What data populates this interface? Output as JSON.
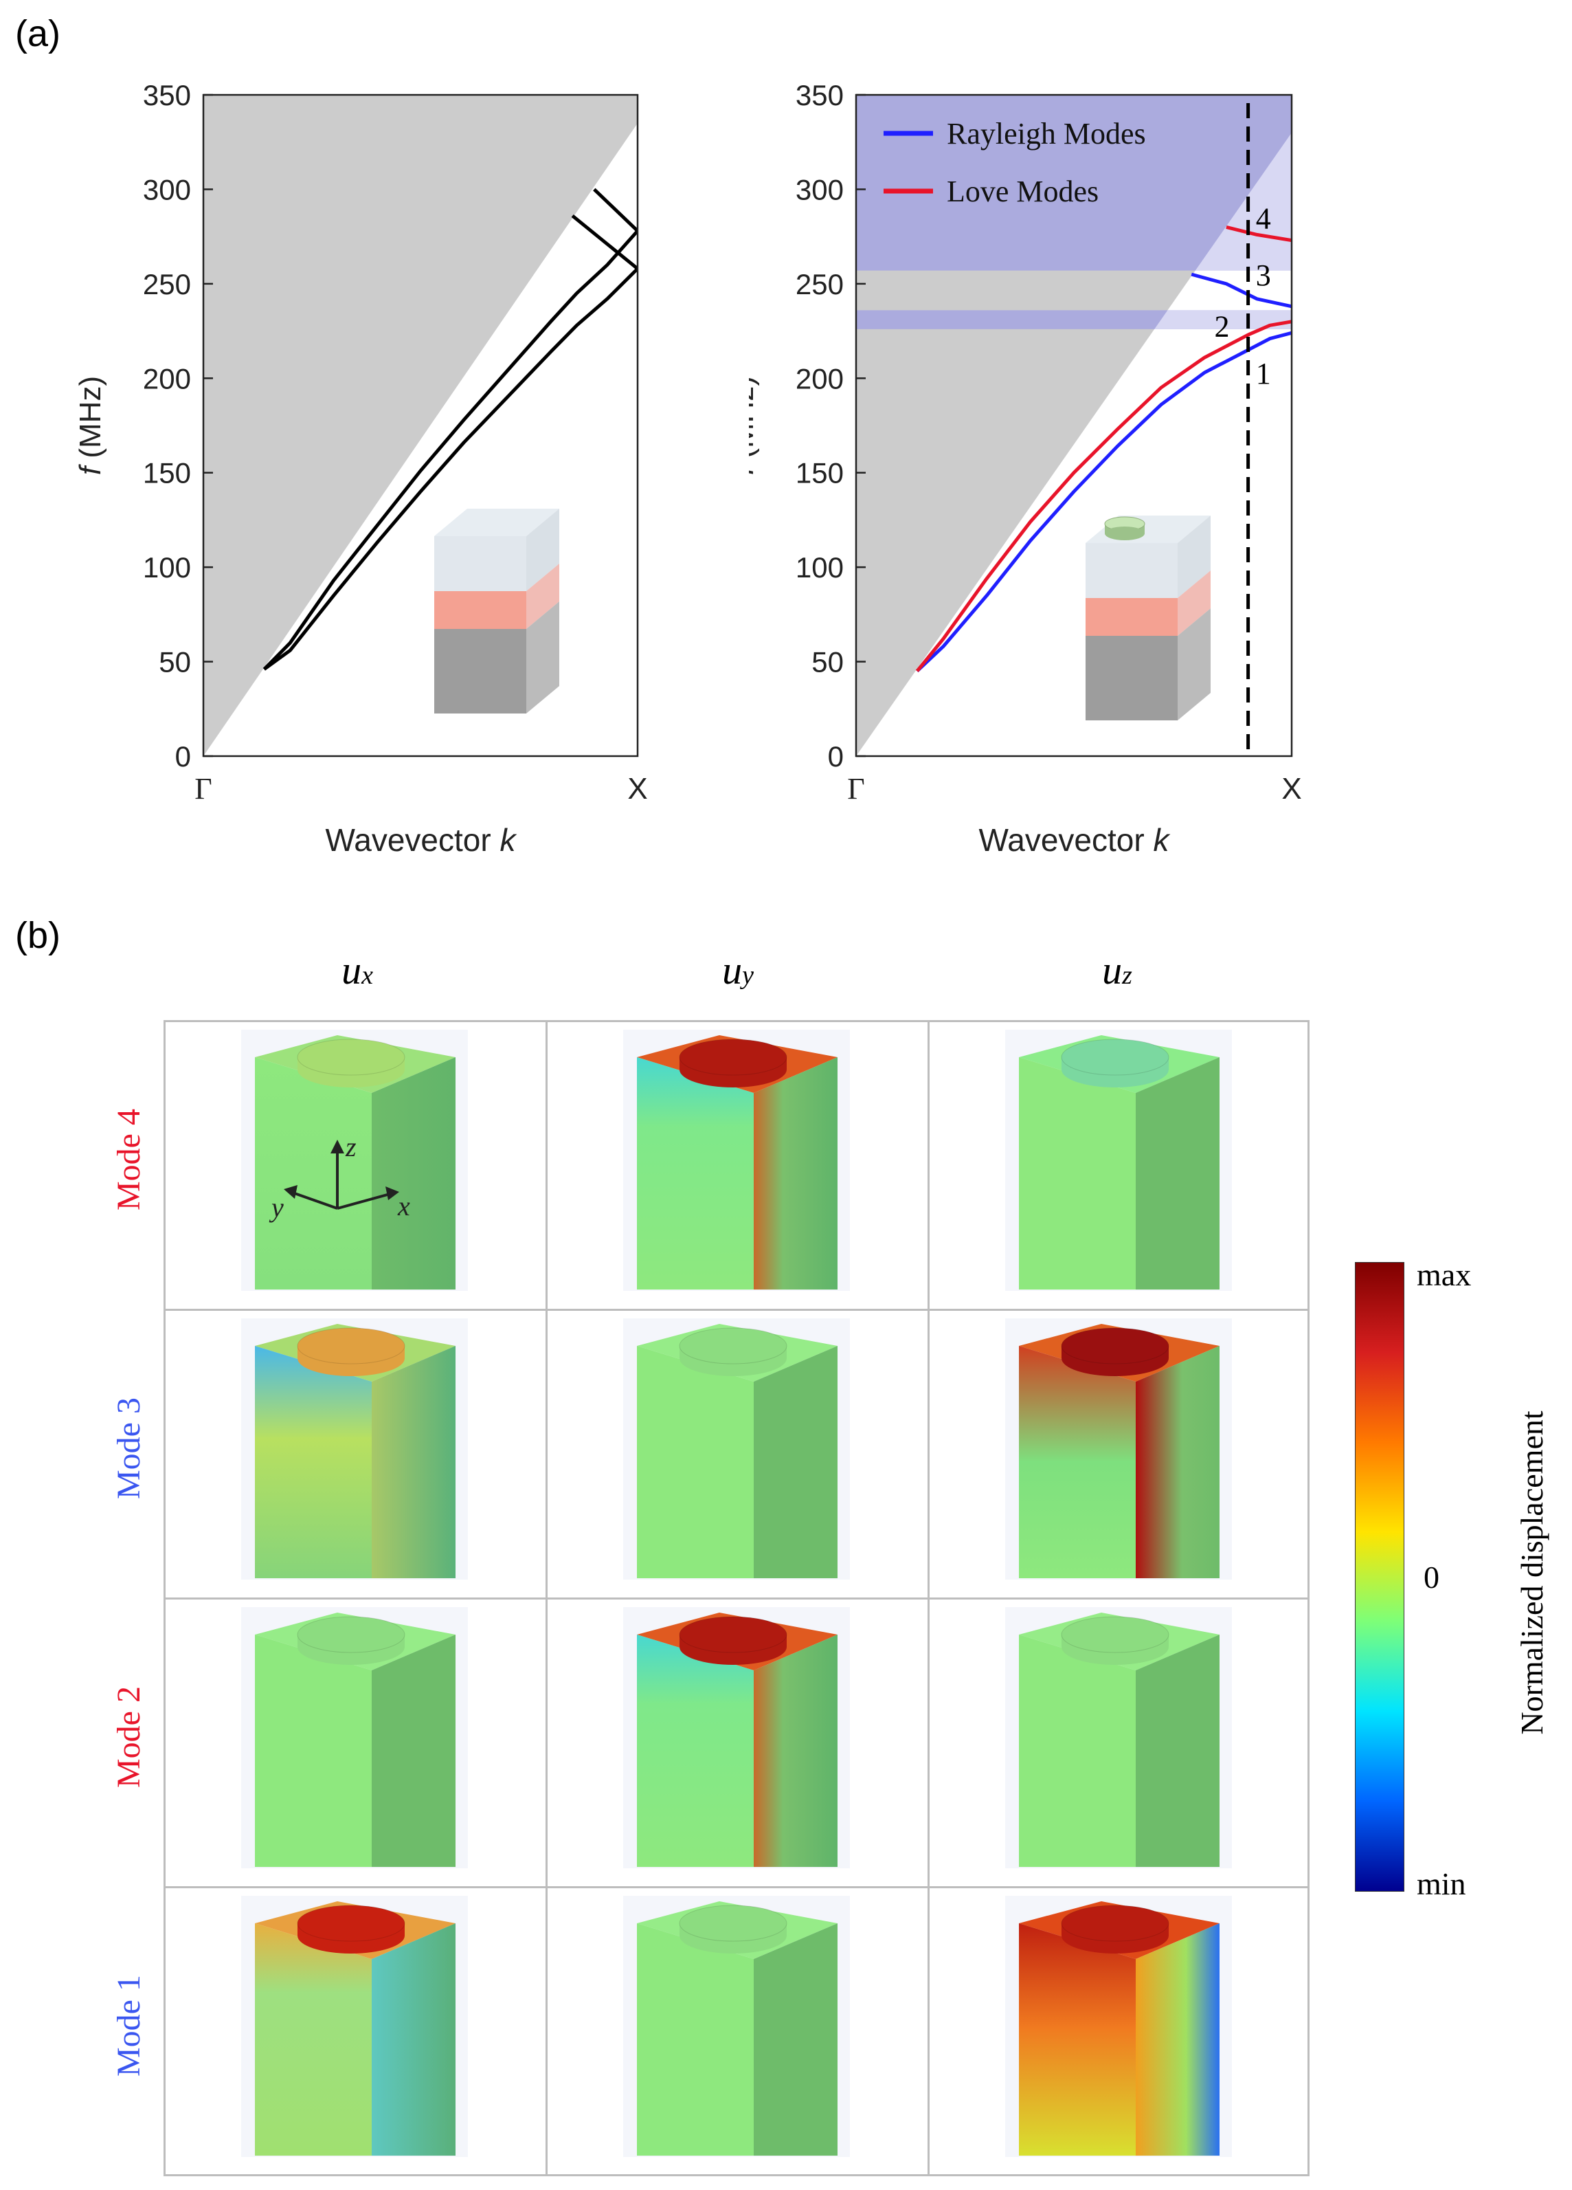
{
  "panel_a_label": "(a)",
  "panel_b_label": "(b)",
  "chart_data": [
    {
      "type": "line",
      "name": "left-band-diagram",
      "title": "",
      "xlabel": "Wavevector k",
      "xlabel_main": "Wavevector",
      "xlabel_var": "k",
      "ylabel": "f (MHz)",
      "ylabel_var": "f",
      "ylabel_unit": "(MHz)",
      "x_ticks": [
        "Γ",
        "X"
      ],
      "y_ticks": [
        0,
        50,
        100,
        150,
        200,
        250,
        300,
        350
      ],
      "xlim": [
        0,
        1
      ],
      "ylim": [
        0,
        350
      ],
      "shaded_region": {
        "name": "sound-cone",
        "color": "#cccccc",
        "boundary_at_X": 335
      },
      "series": [
        {
          "name": "mode-a",
          "color": "#000000",
          "x": [
            0.14,
            0.2,
            0.3,
            0.4,
            0.5,
            0.6,
            0.7,
            0.8,
            0.86,
            0.93,
            1.0
          ],
          "y": [
            46,
            60,
            93,
            122,
            151,
            178,
            204,
            230,
            245,
            260,
            278
          ]
        },
        {
          "name": "mode-b",
          "color": "#000000",
          "x": [
            0.14,
            0.2,
            0.3,
            0.4,
            0.5,
            0.6,
            0.7,
            0.8,
            0.86,
            0.93,
            1.0
          ],
          "y": [
            46,
            56,
            85,
            113,
            140,
            166,
            190,
            214,
            228,
            242,
            258
          ]
        },
        {
          "name": "mode-c",
          "color": "#000000",
          "x": [
            0.85,
            1.0
          ],
          "y": [
            286,
            258
          ]
        },
        {
          "name": "mode-d",
          "color": "#000000",
          "x": [
            0.9,
            1.0
          ],
          "y": [
            300,
            278
          ]
        }
      ]
    },
    {
      "type": "line",
      "name": "right-band-diagram",
      "title": "",
      "xlabel": "Wavevector k",
      "xlabel_main": "Wavevector",
      "xlabel_var": "k",
      "ylabel": "f (MHz)",
      "ylabel_var": "f",
      "ylabel_unit": "(MHz)",
      "x_ticks": [
        "Γ",
        "X"
      ],
      "y_ticks": [
        0,
        50,
        100,
        150,
        200,
        250,
        300,
        350
      ],
      "xlim": [
        0,
        1
      ],
      "ylim": [
        0,
        350
      ],
      "legend": [
        {
          "label": "Rayleigh Modes",
          "color": "#1f1fff"
        },
        {
          "label": "Love Modes",
          "color": "#e8142a"
        }
      ],
      "shaded_region": {
        "name": "sound-cone",
        "color": "#cccccc",
        "boundary_at_X": 330
      },
      "bands": [
        {
          "name": "upper-band",
          "from": 257,
          "to": 350,
          "color": "#a9a9de"
        },
        {
          "name": "narrow-band",
          "from": 226,
          "to": 236,
          "color": "#a9a9de"
        }
      ],
      "dashed_line_x": 0.9,
      "mode_labels": [
        {
          "text": "1",
          "x": 0.935,
          "y": 203
        },
        {
          "text": "2",
          "x": 0.84,
          "y": 228
        },
        {
          "text": "3",
          "x": 0.935,
          "y": 255
        },
        {
          "text": "4",
          "x": 0.935,
          "y": 285
        }
      ],
      "series": [
        {
          "name": "mode-1-rayleigh",
          "color": "#1f1fff",
          "x": [
            0.14,
            0.2,
            0.3,
            0.4,
            0.5,
            0.6,
            0.7,
            0.8,
            0.9,
            0.95,
            1.0
          ],
          "y": [
            45,
            58,
            85,
            114,
            140,
            164,
            186,
            203,
            215,
            221,
            224
          ]
        },
        {
          "name": "mode-2-love",
          "color": "#e8142a",
          "x": [
            0.14,
            0.2,
            0.3,
            0.4,
            0.5,
            0.6,
            0.7,
            0.8,
            0.9,
            0.95,
            1.0
          ],
          "y": [
            45,
            62,
            94,
            124,
            150,
            173,
            195,
            211,
            223,
            228,
            230
          ]
        },
        {
          "name": "mode-3-rayleigh",
          "color": "#1f1fff",
          "x": [
            0.77,
            0.85,
            0.92,
            1.0
          ],
          "y": [
            255,
            250,
            242,
            238
          ]
        },
        {
          "name": "mode-4-love",
          "color": "#e8142a",
          "x": [
            0.85,
            0.92,
            1.0
          ],
          "y": [
            280,
            276,
            273
          ]
        }
      ]
    }
  ],
  "panel_b": {
    "columns": [
      {
        "symbol": "u",
        "subscript": "x"
      },
      {
        "symbol": "u",
        "subscript": "y"
      },
      {
        "symbol": "u",
        "subscript": "z"
      }
    ],
    "rows": [
      {
        "label": "Mode 4",
        "color": "#e8142a",
        "fields": [
          "mixed",
          "hot-top",
          "cool"
        ]
      },
      {
        "label": "Mode 3",
        "color": "#3a56f0",
        "fields": [
          "mixed-blue",
          "neutral",
          "hot-deep"
        ]
      },
      {
        "label": "Mode 2",
        "color": "#e8142a",
        "fields": [
          "neutral",
          "hot-top",
          "neutral"
        ]
      },
      {
        "label": "Mode 1",
        "color": "#3a56f0",
        "fields": [
          "hot-top-flat",
          "neutral",
          "hot-side"
        ]
      }
    ],
    "axes_labels": {
      "z": "z",
      "y": "y",
      "x": "x"
    },
    "colorbar": {
      "title": "Normalized displacement",
      "max_label": "max",
      "mid_label": "0",
      "min_label": "min",
      "colors": [
        "#7f0000",
        "#d71f1f",
        "#ff7a00",
        "#ffe400",
        "#7dff78",
        "#00e4ff",
        "#0066ff",
        "#00008f"
      ]
    }
  }
}
